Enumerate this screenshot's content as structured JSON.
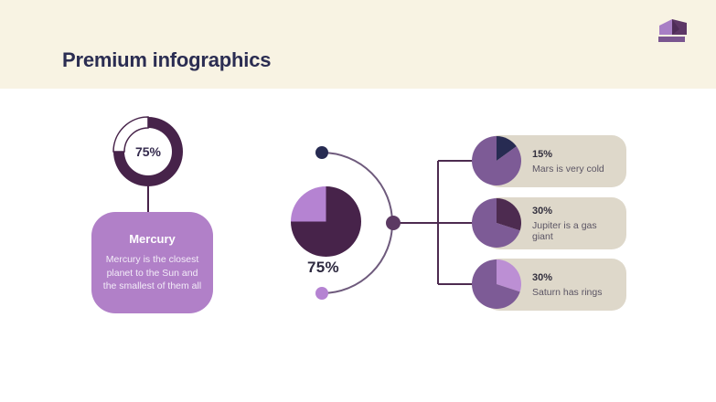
{
  "slide": {
    "title": "Premium infographics"
  },
  "theme": {
    "header_bg": "#f8f3e3",
    "slide_bg": "#ffffff",
    "title_color": "#2b2d52",
    "dark_plum": "#47234a",
    "light_purple": "#b583d2",
    "mid_purple": "#7d5b96",
    "navy": "#272b52",
    "mercury_card_bg": "#b180c8",
    "info_card_bg": "#ded8ca",
    "arc_line_color": "#6e5a7c",
    "connector_line_color": "#4d2b50",
    "crown_light": "#a87fc5",
    "crown_dark": "#5d3766",
    "crown_band": "#7a5590"
  },
  "mercury": {
    "title": "Mercury",
    "description": "Mercury is the closest planet to the Sun and the smallest of them all"
  },
  "chart_data": [
    {
      "id": "mercury-donut",
      "type": "donut",
      "percent": 75,
      "label": "75%",
      "filled_color": "#47234a",
      "empty_color": "#ffffff",
      "note": "ring filled clockwise from 12 o'clock; empty quarter at top-left"
    },
    {
      "id": "center-pie",
      "type": "pie",
      "label": "75%",
      "slices": [
        {
          "label": "75%",
          "value": 75,
          "color": "#47234a"
        },
        {
          "label": "remainder",
          "value": 25,
          "color": "#b583d2"
        }
      ]
    },
    {
      "id": "mars-pie",
      "type": "pie",
      "label": "15%",
      "description": "Mars is very cold",
      "slices": [
        {
          "label": "15%",
          "value": 15,
          "color": "#272b52"
        },
        {
          "label": "remainder",
          "value": 85,
          "color": "#7d5b96"
        }
      ]
    },
    {
      "id": "jupiter-pie",
      "type": "pie",
      "label": "30%",
      "description": "Jupiter is a gas giant",
      "slices": [
        {
          "label": "30%",
          "value": 30,
          "color": "#4d2b50"
        },
        {
          "label": "remainder",
          "value": 70,
          "color": "#7d5b96"
        }
      ]
    },
    {
      "id": "saturn-pie",
      "type": "pie",
      "label": "30%",
      "description": "Saturn has rings",
      "slices": [
        {
          "label": "30%",
          "value": 30,
          "color": "#bc8fd4"
        },
        {
          "label": "remainder",
          "value": 70,
          "color": "#7d5b96"
        }
      ]
    }
  ]
}
